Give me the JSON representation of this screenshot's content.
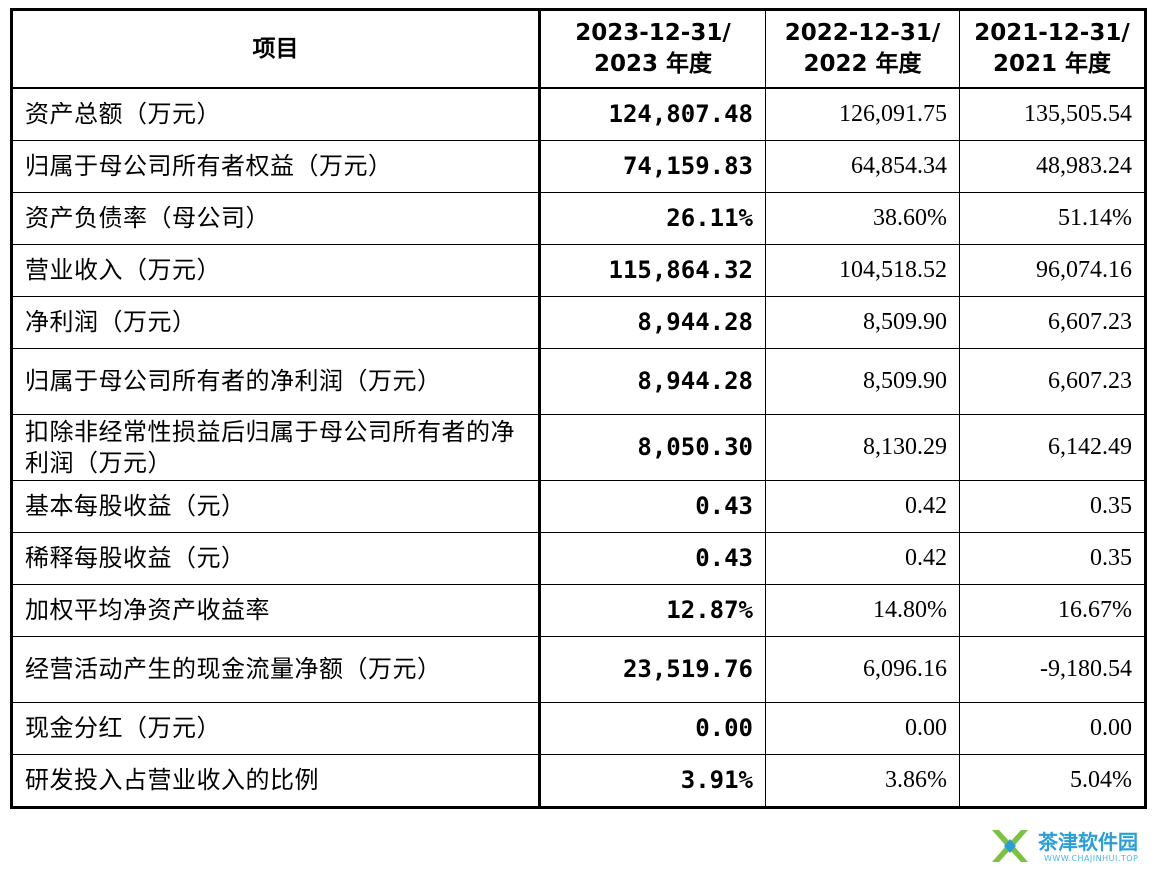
{
  "table": {
    "headers": [
      {
        "lines": [
          "项目"
        ]
      },
      {
        "lines": [
          "2023-12-31/",
          "2023 年度"
        ]
      },
      {
        "lines": [
          "2022-12-31/",
          "2022 年度"
        ]
      },
      {
        "lines": [
          "2021-12-31/",
          "2021 年度"
        ]
      }
    ],
    "rows": [
      {
        "label": "资产总额（万元）",
        "v2023": "124,807.48",
        "v2022": "126,091.75",
        "v2021": "135,505.54"
      },
      {
        "label": "归属于母公司所有者权益（万元）",
        "v2023": "74,159.83",
        "v2022": "64,854.34",
        "v2021": "48,983.24"
      },
      {
        "label": "资产负债率（母公司）",
        "v2023": "26.11%",
        "v2022": "38.60%",
        "v2021": "51.14%"
      },
      {
        "label": "营业收入（万元）",
        "v2023": "115,864.32",
        "v2022": "104,518.52",
        "v2021": "96,074.16"
      },
      {
        "label": "净利润（万元）",
        "v2023": "8,944.28",
        "v2022": "8,509.90",
        "v2021": "6,607.23"
      },
      {
        "label": "归属于母公司所有者的净利润（万元）",
        "v2023": "8,944.28",
        "v2022": "8,509.90",
        "v2021": "6,607.23"
      },
      {
        "label": "扣除非经常性损益后归属于母公司所有者的净利润（万元）",
        "v2023": "8,050.30",
        "v2022": "8,130.29",
        "v2021": "6,142.49"
      },
      {
        "label": "基本每股收益（元）",
        "v2023": "0.43",
        "v2022": "0.42",
        "v2021": "0.35"
      },
      {
        "label": "稀释每股收益（元）",
        "v2023": "0.43",
        "v2022": "0.42",
        "v2021": "0.35"
      },
      {
        "label": "加权平均净资产收益率",
        "v2023": "12.87%",
        "v2022": "14.80%",
        "v2021": "16.67%"
      },
      {
        "label": "经营活动产生的现金流量净额（万元）",
        "v2023": "23,519.76",
        "v2022": "6,096.16",
        "v2021": "-9,180.54"
      },
      {
        "label": "现金分红（万元）",
        "v2023": "0.00",
        "v2022": "0.00",
        "v2021": "0.00"
      },
      {
        "label": "研发投入占营业收入的比例",
        "v2023": "3.91%",
        "v2022": "3.86%",
        "v2021": "5.04%"
      }
    ]
  },
  "watermark": {
    "name": "茶津软件园",
    "url": "WWW.CHAJINHUI.TOP",
    "logo_icon": "x-logo-icon",
    "colors": {
      "green": "#7cc142",
      "blue": "#2a9fd6"
    }
  }
}
